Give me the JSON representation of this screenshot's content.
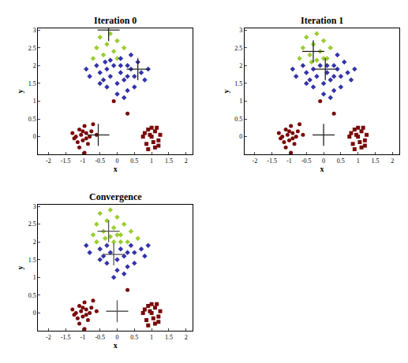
{
  "chart_data": [
    {
      "type": "scatter",
      "title": "Iteration 0",
      "x_label": "x",
      "y_label": "y",
      "xlim": [
        -2.3,
        2.2
      ],
      "ylim": [
        -0.5,
        3.05
      ],
      "xticks": [
        -2,
        -1.5,
        -1,
        -0.5,
        0,
        0.5,
        1,
        1.5,
        2
      ],
      "yticks": [
        0,
        0.5,
        1,
        1.5,
        2,
        2.5,
        3
      ],
      "series": [
        {
          "color": "#9acd32",
          "marker": "diamond",
          "x": [
            -0.7,
            -0.6,
            -0.5,
            -0.4,
            -0.3,
            -0.2,
            -0.1,
            0,
            0.2,
            0
          ],
          "y": [
            2.2,
            2.5,
            2.8,
            2.3,
            2.6,
            2.9,
            2.4,
            2.7,
            2.5,
            2.2
          ]
        },
        {
          "color": "#3333aa",
          "marker": "diamond",
          "x": [
            -0.9,
            0.1,
            0.3,
            -0.6,
            -0.5,
            -0.4,
            -0.3,
            -0.2,
            -0.1,
            0,
            0.1,
            0.2,
            0.3,
            0.4,
            0.5,
            0.6,
            0.7,
            0.8,
            0.9,
            0,
            -0.3,
            -0.5,
            0.1,
            -0.2,
            0.4,
            -0.8,
            0.2,
            0.5,
            -0.35,
            0.3
          ],
          "y": [
            1.9,
            2.2,
            2.0,
            2.0,
            1.8,
            1.6,
            1.9,
            1.7,
            2.0,
            1.5,
            1.8,
            1.6,
            1.3,
            1.9,
            1.7,
            2.1,
            1.8,
            1.6,
            1.9,
            1.2,
            1.4,
            1.5,
            2.0,
            2.15,
            2.3,
            1.7,
            1.1,
            1.4,
            2.1,
            1.7
          ]
        },
        {
          "color": "#7a0a0a",
          "marker": "circle",
          "x": [
            -1.3,
            -1.2,
            -1.1,
            -1.0,
            -0.9,
            -0.8,
            -1.15,
            -1.05,
            -0.95,
            -0.85,
            -0.75,
            -1.25,
            -1.0,
            -0.9,
            -0.7,
            -1.1,
            -0.95,
            -0.6,
            -0.1,
            0.3
          ],
          "y": [
            0.1,
            0.0,
            0.2,
            -0.1,
            0.1,
            0.0,
            -0.15,
            0.05,
            0.3,
            -0.2,
            0.15,
            -0.05,
            0.15,
            -0.05,
            0.35,
            -0.3,
            -0.45,
            0.05,
            1.0,
            0.65
          ]
        },
        {
          "color": "#7a0a0a",
          "marker": "square",
          "x": [
            0.8,
            0.9,
            1.0,
            1.1,
            1.2,
            0.85,
            0.95,
            1.05,
            1.15,
            1.25,
            0.9,
            1.0,
            1.1,
            0.75,
            1.2
          ],
          "y": [
            0.1,
            0.2,
            0.0,
            0.15,
            -0.1,
            -0.2,
            0.05,
            -0.15,
            0.25,
            0.05,
            -0.35,
            0.25,
            -0.3,
            0.0,
            -0.25
          ]
        },
        {
          "color": "#222222",
          "marker": "cross",
          "x": [
            -0.25,
            0.6,
            -0.55
          ],
          "y": [
            3.0,
            1.9,
            0.05
          ]
        }
      ]
    },
    {
      "type": "scatter",
      "title": "Iteration 1",
      "x_label": "x",
      "y_label": "y",
      "xlim": [
        -2.3,
        2.2
      ],
      "ylim": [
        -0.5,
        3.05
      ],
      "xticks": [
        -2,
        -1.5,
        -1,
        -0.5,
        0,
        0.5,
        1,
        1.5,
        2
      ],
      "yticks": [
        0,
        0.5,
        1,
        1.5,
        2,
        2.5,
        3
      ],
      "series": [
        {
          "color": "#9acd32",
          "marker": "diamond",
          "x": [
            -0.7,
            -0.6,
            -0.5,
            -0.4,
            -0.3,
            -0.2,
            -0.1,
            0,
            0.2,
            0,
            0.1,
            -0.2,
            -0.35
          ],
          "y": [
            2.2,
            2.5,
            2.8,
            2.3,
            2.6,
            2.9,
            2.4,
            2.7,
            2.5,
            2.2,
            2.2,
            2.15,
            2.1
          ]
        },
        {
          "color": "#3333aa",
          "marker": "diamond",
          "x": [
            -0.9,
            0.3,
            -0.6,
            -0.5,
            -0.4,
            -0.3,
            -0.2,
            -0.1,
            0,
            0.1,
            0.2,
            0.3,
            0.4,
            0.5,
            0.6,
            0.7,
            0.8,
            0.9,
            0,
            -0.3,
            -0.5,
            0.1,
            0.4,
            -0.8,
            0.2,
            0.5,
            0.3
          ],
          "y": [
            1.9,
            2.0,
            2.0,
            1.8,
            1.6,
            1.9,
            1.7,
            2.0,
            1.5,
            1.8,
            1.6,
            1.3,
            1.9,
            1.7,
            2.1,
            1.8,
            1.6,
            1.9,
            1.2,
            1.4,
            1.5,
            2.0,
            2.3,
            1.7,
            1.1,
            1.4,
            1.7
          ]
        },
        {
          "color": "#7a0a0a",
          "marker": "circle",
          "x": [
            -1.3,
            -1.2,
            -1.1,
            -1.0,
            -0.9,
            -0.8,
            -1.15,
            -1.05,
            -0.95,
            -0.85,
            -0.75,
            -1.25,
            -1.0,
            -0.9,
            -0.7,
            -1.1,
            -0.95,
            -0.6,
            -0.1,
            0.3
          ],
          "y": [
            0.1,
            0.0,
            0.2,
            -0.1,
            0.1,
            0.0,
            -0.15,
            0.05,
            0.3,
            -0.2,
            0.15,
            -0.05,
            0.15,
            -0.05,
            0.35,
            -0.3,
            -0.45,
            0.05,
            1.0,
            0.65
          ]
        },
        {
          "color": "#7a0a0a",
          "marker": "square",
          "x": [
            0.8,
            0.9,
            1.0,
            1.1,
            1.2,
            0.85,
            0.95,
            1.05,
            1.15,
            1.25,
            0.9,
            1.0,
            1.1,
            0.75,
            1.2
          ],
          "y": [
            0.1,
            0.2,
            0.0,
            0.15,
            -0.1,
            -0.2,
            0.05,
            -0.15,
            0.25,
            0.05,
            -0.35,
            0.25,
            -0.3,
            0.0,
            -0.25
          ]
        },
        {
          "color": "#222222",
          "marker": "cross",
          "x": [
            -0.3,
            0.05,
            0.0
          ],
          "y": [
            2.4,
            1.9,
            0.05
          ]
        }
      ]
    },
    {
      "type": "scatter",
      "title": "Convergence",
      "x_label": "x",
      "y_label": "y",
      "xlim": [
        -2.3,
        2.2
      ],
      "ylim": [
        -0.5,
        3.05
      ],
      "xticks": [
        -2,
        -1.5,
        -1,
        -0.5,
        0,
        0.5,
        1,
        1.5,
        2
      ],
      "yticks": [
        0,
        0.5,
        1,
        1.5,
        2,
        2.5,
        3
      ],
      "series": [
        {
          "color": "#9acd32",
          "marker": "diamond",
          "x": [
            -0.7,
            -0.6,
            -0.5,
            -0.4,
            -0.3,
            -0.2,
            -0.1,
            0,
            0.2,
            0,
            0.1,
            -0.2,
            -0.35,
            0.3,
            -0.6,
            -0.1,
            0.6,
            0.1,
            0.4
          ],
          "y": [
            2.2,
            2.5,
            2.8,
            2.3,
            2.6,
            2.9,
            2.4,
            2.7,
            2.5,
            2.2,
            2.2,
            2.15,
            2.1,
            2.0,
            2.0,
            2.0,
            2.1,
            2.0,
            2.3
          ]
        },
        {
          "color": "#3333aa",
          "marker": "diamond",
          "x": [
            -0.9,
            -0.5,
            -0.4,
            -0.3,
            -0.2,
            0,
            0.1,
            0.2,
            0.3,
            0.4,
            0.5,
            0.7,
            0.8,
            0.9,
            0,
            -0.3,
            -0.5,
            -0.8,
            0.2,
            0.5,
            0.3,
            -0.1
          ],
          "y": [
            1.9,
            1.8,
            1.6,
            1.9,
            1.7,
            1.5,
            1.8,
            1.6,
            1.3,
            1.9,
            1.7,
            1.8,
            1.6,
            1.9,
            1.2,
            1.4,
            1.5,
            1.7,
            1.1,
            1.4,
            1.7,
            1.0
          ]
        },
        {
          "color": "#7a0a0a",
          "marker": "circle",
          "x": [
            -1.3,
            -1.2,
            -1.1,
            -1.0,
            -0.9,
            -0.8,
            -1.15,
            -1.05,
            -0.95,
            -0.85,
            -0.75,
            -1.25,
            -1.0,
            -0.9,
            -0.7,
            -1.1,
            -0.95,
            -0.6,
            0.3
          ],
          "y": [
            0.1,
            0.0,
            0.2,
            -0.1,
            0.1,
            0.0,
            -0.15,
            0.05,
            0.3,
            -0.2,
            0.15,
            -0.05,
            0.15,
            -0.05,
            0.35,
            -0.3,
            -0.45,
            0.05,
            0.65
          ]
        },
        {
          "color": "#7a0a0a",
          "marker": "square",
          "x": [
            0.8,
            0.9,
            1.0,
            1.1,
            1.2,
            0.85,
            0.95,
            1.05,
            1.15,
            1.25,
            0.9,
            1.0,
            1.1,
            0.75,
            1.2
          ],
          "y": [
            0.1,
            0.2,
            0.0,
            0.15,
            -0.1,
            -0.2,
            0.05,
            -0.15,
            0.25,
            0.05,
            -0.35,
            0.25,
            -0.3,
            0.0,
            -0.25
          ]
        },
        {
          "color": "#555555",
          "marker": "cross",
          "x": [
            -0.25,
            -0.1,
            0.0
          ],
          "y": [
            2.3,
            1.65,
            0.05
          ]
        }
      ]
    }
  ]
}
